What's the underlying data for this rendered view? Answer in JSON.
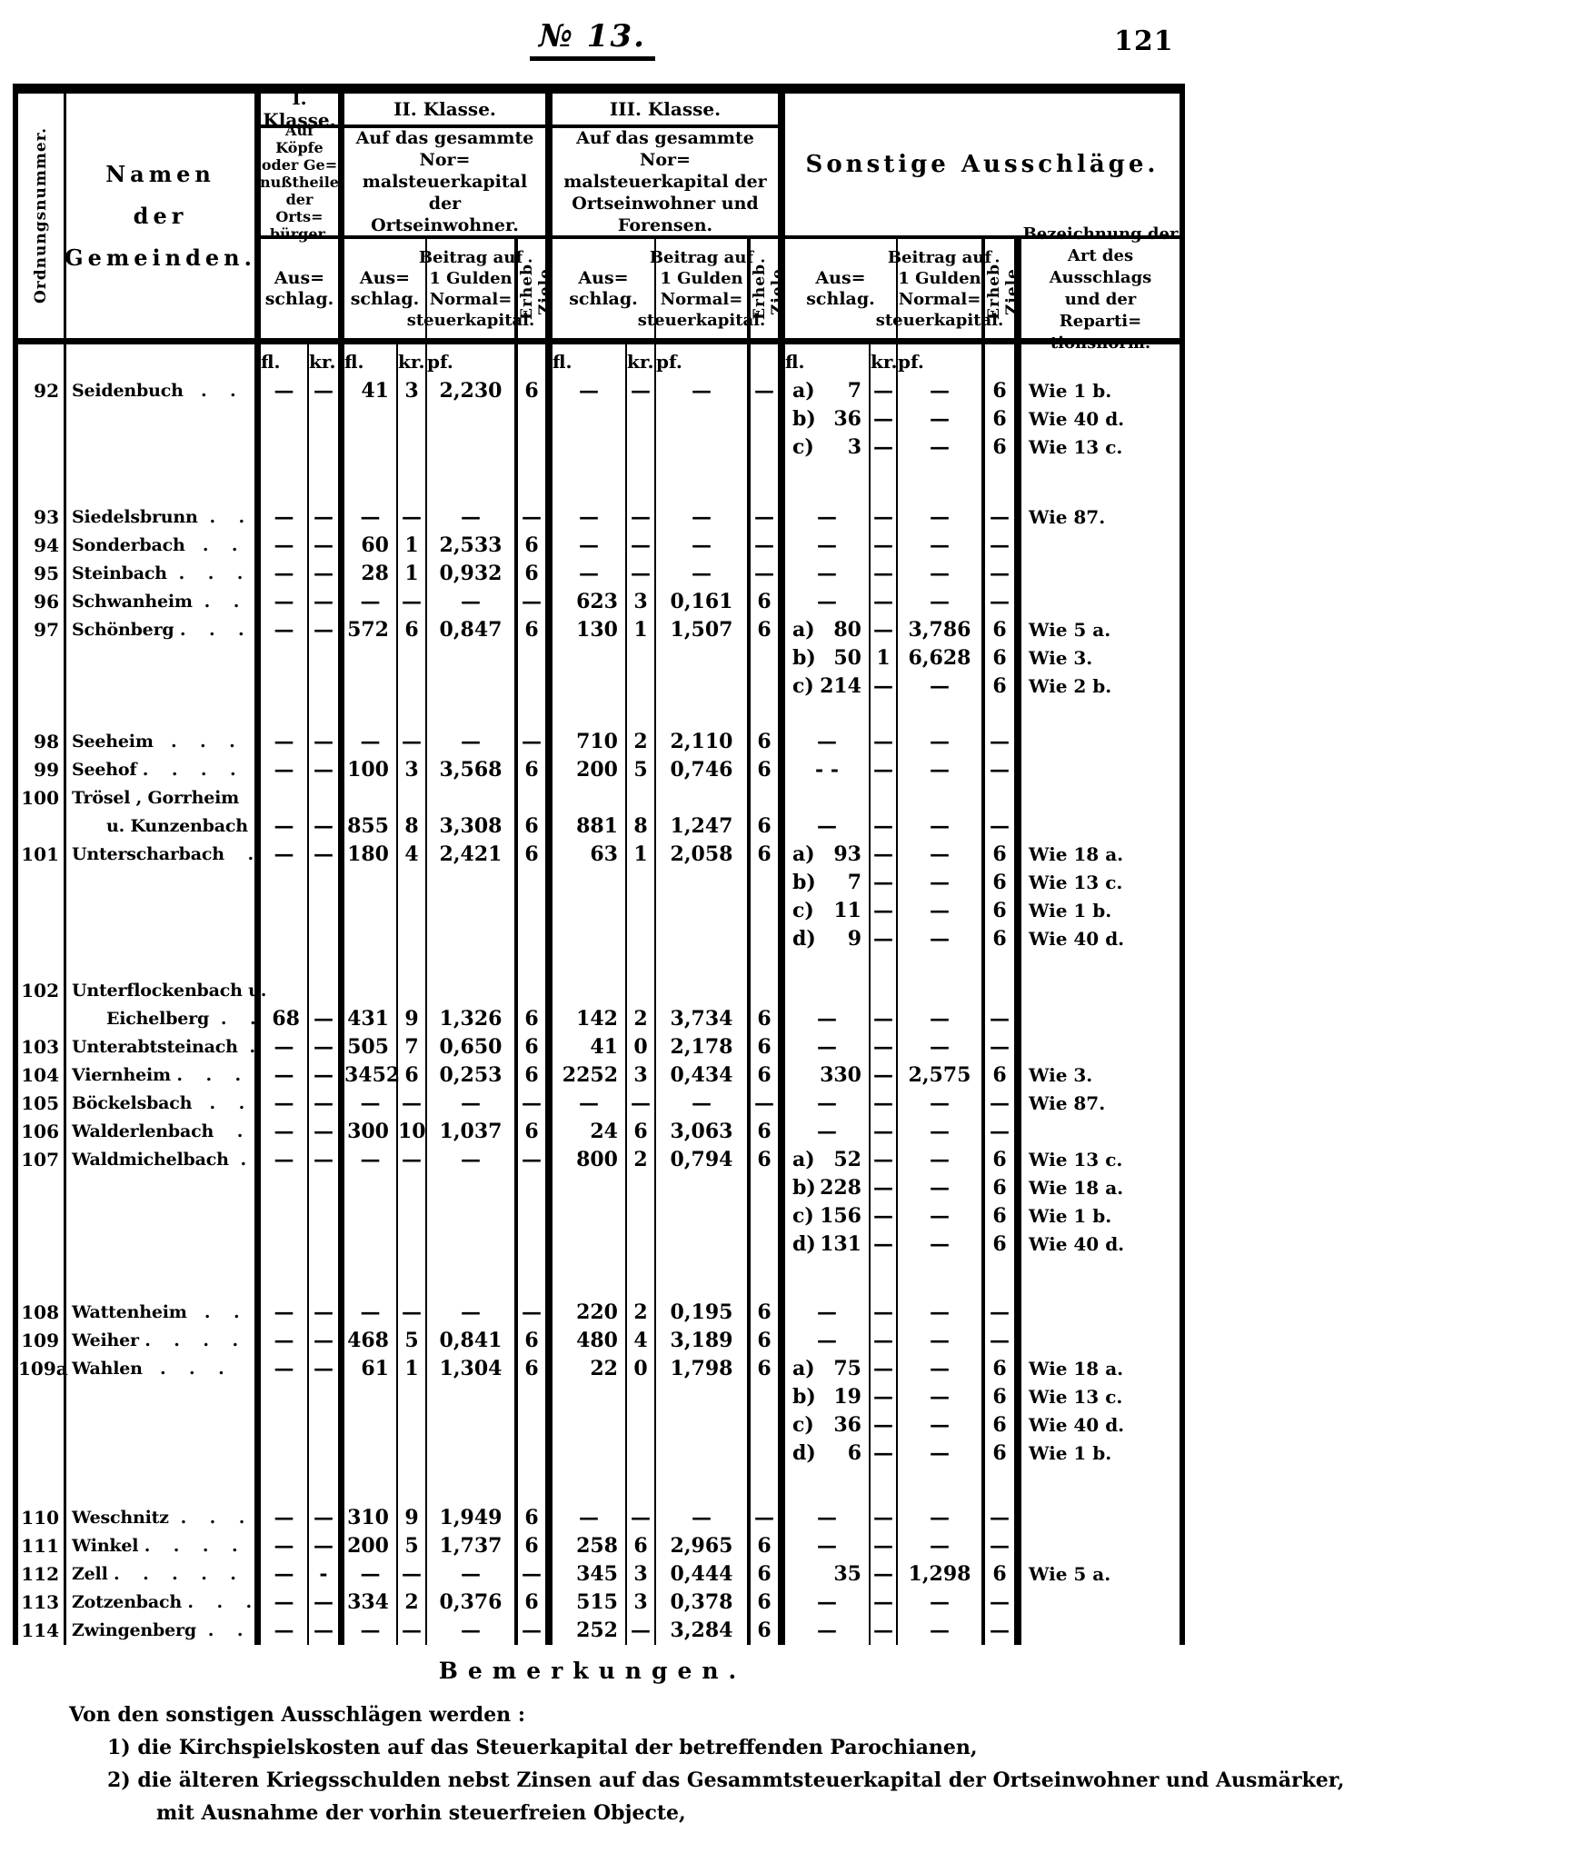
{
  "page": {
    "doc_number": "№ 13.",
    "page_number": "121",
    "bemerkungen_title": "Bemerkungen.",
    "notes_intro": "Von den sonstigen Ausschlägen werden :",
    "notes": [
      "1) die Kirchspielskosten auf das Steuerkapital der betreffenden Parochianen,",
      "2) die älteren Kriegsschulden nebst Zinsen auf das Gesammtsteuerkapital der Ortseinwohner und Ausmärker,",
      "mit Ausnahme der vorhin steuerfreien Objecte,"
    ]
  },
  "header": {
    "ordnungsnummer": "Ordnungsnummer.",
    "namen": [
      "Namen",
      "der",
      "Gemeinden."
    ],
    "klasse1": {
      "title": "I. Klasse.",
      "desc": [
        "Auf Köpfe",
        "oder Ge=",
        "nußtheile",
        "der Orts=",
        "bürger."
      ],
      "ausschlag": [
        "Aus=",
        "schlag."
      ]
    },
    "klasse2": {
      "title": "II. Klasse.",
      "desc": [
        "Auf das gesammte Nor=",
        "malsteuerkapital der",
        "Ortseinwohner."
      ],
      "ausschlag": [
        "Aus=",
        "schlag."
      ],
      "beitrag": [
        "Beitrag auf",
        "1 Gulden",
        "Normal=",
        "steuerkapital."
      ],
      "ziele": "Erheb. Ziele."
    },
    "klasse3": {
      "title": "III. Klasse.",
      "desc": [
        "Auf das gesammte Nor=",
        "malsteuerkapital der",
        "Ortseinwohner und",
        "Forensen."
      ],
      "ausschlag": [
        "Aus=",
        "schlag."
      ],
      "beitrag": [
        "Beitrag auf",
        "1 Gulden",
        "Normal=",
        "steuerkapital."
      ],
      "ziele": "Erheb. Ziele."
    },
    "sonstige": {
      "title": "Sonstige Ausschläge.",
      "ausschlag": [
        "Aus=",
        "schlag."
      ],
      "beitrag": [
        "Beitrag auf",
        "1 Gulden",
        "Normal=",
        "steuerkapital."
      ],
      "ziele": "Erheb. Ziele.",
      "bezeichnung": [
        "Bezeichnung der",
        "Art des Ausschlags",
        "und der Reparti=",
        "tionsnorm."
      ]
    },
    "units": {
      "fl": "fl.",
      "kr": "kr.",
      "pf": "pf."
    }
  },
  "table": {
    "rows": [
      {
        "num": "92",
        "name": [
          "Seidenbuch   .    ."
        ],
        "k1": [
          "—",
          "—"
        ],
        "k2": [
          "41",
          "3",
          "2,230",
          "6"
        ],
        "k3": [
          "—",
          "—",
          "—",
          "—"
        ],
        "son": [
          {
            "l": "a)",
            "fl": "7",
            "kr": "—",
            "pf": "—",
            "z": "6",
            "wie": "Wie 1 b."
          },
          {
            "l": "b)",
            "fl": "36",
            "kr": "—",
            "pf": "—",
            "z": "6",
            "wie": "Wie 40 d."
          },
          {
            "l": "c)",
            "fl": "3",
            "kr": "—",
            "pf": "—",
            "z": "6",
            "wie": "Wie 13 c."
          }
        ],
        "gap": 46
      },
      {
        "num": "93",
        "name": [
          "Siedelsbrunn  .    ."
        ],
        "k1": [
          "—",
          "—"
        ],
        "k2": [
          "—",
          "—",
          "—",
          "—"
        ],
        "k3": [
          "—",
          "—",
          "—",
          "—"
        ],
        "son": [
          {
            "l": "",
            "fl": "—",
            "kr": "—",
            "pf": "—",
            "z": "—",
            "wie": "Wie 87."
          }
        ]
      },
      {
        "num": "94",
        "name": [
          "Sonderbach   .    ."
        ],
        "k1": [
          "—",
          "—"
        ],
        "k2": [
          "60",
          "1",
          "2,533",
          "6"
        ],
        "k3": [
          "—",
          "—",
          "—",
          "—"
        ],
        "son": [
          {
            "l": "",
            "fl": "—",
            "kr": "—",
            "pf": "—",
            "z": "—",
            "wie": ""
          }
        ]
      },
      {
        "num": "95",
        "name": [
          "Steinbach  .    .    ."
        ],
        "k1": [
          "—",
          "—"
        ],
        "k2": [
          "28",
          "1",
          "0,932",
          "6"
        ],
        "k3": [
          "—",
          "—",
          "—",
          "—"
        ],
        "son": [
          {
            "l": "",
            "fl": "—",
            "kr": "—",
            "pf": "—",
            "z": "—",
            "wie": ""
          }
        ]
      },
      {
        "num": "96",
        "name": [
          "Schwanheim  .    ."
        ],
        "k1": [
          "—",
          "—"
        ],
        "k2": [
          "—",
          "—",
          "—",
          "—"
        ],
        "k3": [
          "623",
          "3",
          "0,161",
          "6"
        ],
        "son": [
          {
            "l": "",
            "fl": "—",
            "kr": "—",
            "pf": "—",
            "z": "—",
            "wie": ""
          }
        ]
      },
      {
        "num": "97",
        "name": [
          "Schönberg .    .    ."
        ],
        "k1": [
          "—",
          "—"
        ],
        "k2": [
          "572",
          "6",
          "0,847",
          "6"
        ],
        "k3": [
          "130",
          "1",
          "1,507",
          "6"
        ],
        "son": [
          {
            "l": "a)",
            "fl": "80",
            "kr": "—",
            "pf": "3,786",
            "z": "6",
            "wie": "Wie 5 a."
          },
          {
            "l": "b)",
            "fl": "50",
            "kr": "1",
            "pf": "6,628",
            "z": "6",
            "wie": "Wie 3."
          },
          {
            "l": "c)",
            "fl": "214",
            "kr": "—",
            "pf": "—",
            "z": "6",
            "wie": "Wie 2 b."
          }
        ],
        "gap": 30
      },
      {
        "num": "98",
        "name": [
          "Seeheim   .    .    ."
        ],
        "k1": [
          "—",
          "—"
        ],
        "k2": [
          "—",
          "—",
          "—",
          "—"
        ],
        "k3": [
          "710",
          "2",
          "2,110",
          "6"
        ],
        "son": [
          {
            "l": "",
            "fl": "—",
            "kr": "—",
            "pf": "—",
            "z": "—",
            "wie": ""
          }
        ]
      },
      {
        "num": "99",
        "name": [
          "Seehof .    .    .    ."
        ],
        "k1": [
          "—",
          "—"
        ],
        "k2": [
          "100",
          "3",
          "3,568",
          "6"
        ],
        "k3": [
          "200",
          "5",
          "0,746",
          "6"
        ],
        "son": [
          {
            "l": "",
            "fl": "- -",
            "kr": "—",
            "pf": "—",
            "z": "—",
            "wie": ""
          }
        ]
      },
      {
        "num": "100",
        "name": [
          "Trösel , Gorrheim",
          "u. Kunzenbach ."
        ],
        "va": "b",
        "k1": [
          "—",
          "—"
        ],
        "k2": [
          "855",
          "8",
          "3,308",
          "6"
        ],
        "k3": [
          "881",
          "8",
          "1,247",
          "6"
        ],
        "son": [
          {
            "l": "",
            "fl": "—",
            "kr": "—",
            "pf": "—",
            "z": "—",
            "wie": ""
          }
        ]
      },
      {
        "num": "101",
        "name": [
          "Unterscharbach    ."
        ],
        "k1": [
          "—",
          "—"
        ],
        "k2": [
          "180",
          "4",
          "2,421",
          "6"
        ],
        "k3": [
          "63",
          "1",
          "2,058",
          "6"
        ],
        "son": [
          {
            "l": "a)",
            "fl": "93",
            "kr": "—",
            "pf": "—",
            "z": "6",
            "wie": "Wie 18 a."
          },
          {
            "l": "b)",
            "fl": "7",
            "kr": "—",
            "pf": "—",
            "z": "6",
            "wie": "Wie 13 c."
          },
          {
            "l": "c)",
            "fl": "11",
            "kr": "—",
            "pf": "—",
            "z": "6",
            "wie": "Wie 1 b."
          },
          {
            "l": "d)",
            "fl": "9",
            "kr": "—",
            "pf": "—",
            "z": "6",
            "wie": "Wie 40 d."
          }
        ],
        "gap": 26
      },
      {
        "num": "102",
        "name": [
          "Unterflockenbach u.",
          "Eichelberg  .    ."
        ],
        "va": "b",
        "k1": [
          "68",
          "—"
        ],
        "k2": [
          "431",
          "9",
          "1,326",
          "6"
        ],
        "k3": [
          "142",
          "2",
          "3,734",
          "6"
        ],
        "son": [
          {
            "l": "",
            "fl": "—",
            "kr": "—",
            "pf": "—",
            "z": "—",
            "wie": ""
          }
        ]
      },
      {
        "num": "103",
        "name": [
          "Unterabtsteinach  ."
        ],
        "k1": [
          "—",
          "—"
        ],
        "k2": [
          "505",
          "7",
          "0,650",
          "6"
        ],
        "k3": [
          "41",
          "0",
          "2,178",
          "6"
        ],
        "son": [
          {
            "l": "",
            "fl": "—",
            "kr": "—",
            "pf": "—",
            "z": "—",
            "wie": ""
          }
        ]
      },
      {
        "num": "104",
        "name": [
          "Viernheim .    .    ."
        ],
        "k1": [
          "—",
          "—"
        ],
        "k2": [
          "3452",
          "6",
          "0,253",
          "6"
        ],
        "k3": [
          "2252",
          "3",
          "0,434",
          "6"
        ],
        "son": [
          {
            "l": "",
            "fl": "330",
            "kr": "—",
            "pf": "2,575",
            "z": "6",
            "wie": "Wie 3."
          }
        ]
      },
      {
        "num": "105",
        "name": [
          "Böckelsbach   .    ."
        ],
        "k1": [
          "—",
          "—"
        ],
        "k2": [
          "—",
          "—",
          "—",
          "—"
        ],
        "k3": [
          "—",
          "—",
          "—",
          "—"
        ],
        "son": [
          {
            "l": "",
            "fl": "—",
            "kr": "—",
            "pf": "—",
            "z": "—",
            "wie": "Wie 87."
          }
        ]
      },
      {
        "num": "106",
        "name": [
          "Walderlenbach    ."
        ],
        "k1": [
          "—",
          "—"
        ],
        "k2": [
          "300",
          "10",
          "1,037",
          "6"
        ],
        "k3": [
          "24",
          "6",
          "3,063",
          "6"
        ],
        "son": [
          {
            "l": "",
            "fl": "—",
            "kr": "—",
            "pf": "—",
            "z": "—",
            "wie": ""
          }
        ]
      },
      {
        "num": "107",
        "name": [
          "Waldmichelbach  ."
        ],
        "k1": [
          "—",
          "—"
        ],
        "k2": [
          "—",
          "—",
          "—",
          "—"
        ],
        "k3": [
          "800",
          "2",
          "0,794",
          "6"
        ],
        "son": [
          {
            "l": "a)",
            "fl": "52",
            "kr": "—",
            "pf": "—",
            "z": "6",
            "wie": "Wie 13 c."
          },
          {
            "l": "b)",
            "fl": "228",
            "kr": "—",
            "pf": "—",
            "z": "6",
            "wie": "Wie 18 a."
          },
          {
            "l": "c)",
            "fl": "156",
            "kr": "—",
            "pf": "—",
            "z": "6",
            "wie": "Wie 1 b."
          },
          {
            "l": "d)",
            "fl": "131",
            "kr": "—",
            "pf": "—",
            "z": "6",
            "wie": "Wie 40 d."
          }
        ],
        "gap": 44
      },
      {
        "num": "108",
        "name": [
          "Wattenheim   .    ."
        ],
        "k1": [
          "—",
          "—"
        ],
        "k2": [
          "—",
          "—",
          "—",
          "—"
        ],
        "k3": [
          "220",
          "2",
          "0,195",
          "6"
        ],
        "son": [
          {
            "l": "",
            "fl": "—",
            "kr": "—",
            "pf": "—",
            "z": "—",
            "wie": ""
          }
        ]
      },
      {
        "num": "109",
        "name": [
          "Weiher .    .    .    ."
        ],
        "k1": [
          "—",
          "—"
        ],
        "k2": [
          "468",
          "5",
          "0,841",
          "6"
        ],
        "k3": [
          "480",
          "4",
          "3,189",
          "6"
        ],
        "son": [
          {
            "l": "",
            "fl": "—",
            "kr": "—",
            "pf": "—",
            "z": "—",
            "wie": ""
          }
        ]
      },
      {
        "num": "109a",
        "name": [
          "Wahlen   .    .    ."
        ],
        "k1": [
          "—",
          "—"
        ],
        "k2": [
          "61",
          "1",
          "1,304",
          "6"
        ],
        "k3": [
          "22",
          "0",
          "1,798",
          "6"
        ],
        "son": [
          {
            "l": "a)",
            "fl": "75",
            "kr": "—",
            "pf": "—",
            "z": "6",
            "wie": "Wie 18 a."
          },
          {
            "l": "b)",
            "fl": "19",
            "kr": "—",
            "pf": "—",
            "z": "6",
            "wie": "Wie 13 c."
          },
          {
            "l": "c)",
            "fl": "36",
            "kr": "—",
            "pf": "—",
            "z": "6",
            "wie": "Wie 40 d."
          },
          {
            "l": "d)",
            "fl": "6",
            "kr": "—",
            "pf": "—",
            "z": "6",
            "wie": "Wie 1 b."
          }
        ],
        "gap": 40
      },
      {
        "num": "110",
        "name": [
          "Weschnitz  .    .    ."
        ],
        "k1": [
          "—",
          "—"
        ],
        "k2": [
          "310",
          "9",
          "1,949",
          "6"
        ],
        "k3": [
          "—",
          "—",
          "—",
          "—"
        ],
        "son": [
          {
            "l": "",
            "fl": "—",
            "kr": "—",
            "pf": "—",
            "z": "—",
            "wie": ""
          }
        ]
      },
      {
        "num": "111",
        "name": [
          "Winkel .    .    .    ."
        ],
        "k1": [
          "—",
          "—"
        ],
        "k2": [
          "200",
          "5",
          "1,737",
          "6"
        ],
        "k3": [
          "258",
          "6",
          "2,965",
          "6"
        ],
        "son": [
          {
            "l": "",
            "fl": "—",
            "kr": "—",
            "pf": "—",
            "z": "—",
            "wie": ""
          }
        ]
      },
      {
        "num": "112",
        "name": [
          "Zell .    .    .    .    ."
        ],
        "k1": [
          "—",
          "-"
        ],
        "k2": [
          "—",
          "—",
          "—",
          "—"
        ],
        "k3": [
          "345",
          "3",
          "0,444",
          "6"
        ],
        "son": [
          {
            "l": "",
            "fl": "35",
            "kr": "—",
            "pf": "1,298",
            "z": "6",
            "wie": "Wie 5 a."
          }
        ]
      },
      {
        "num": "113",
        "name": [
          "Zotzenbach .    .    ."
        ],
        "k1": [
          "—",
          "—"
        ],
        "k2": [
          "334",
          "2",
          "0,376",
          "6"
        ],
        "k3": [
          "515",
          "3",
          "0,378",
          "6"
        ],
        "son": [
          {
            "l": "",
            "fl": "—",
            "kr": "—",
            "pf": "—",
            "z": "—",
            "wie": ""
          }
        ]
      },
      {
        "num": "114",
        "name": [
          "Zwingenberg  .    ."
        ],
        "k1": [
          "—",
          "—"
        ],
        "k2": [
          "—",
          "—",
          "—",
          "—"
        ],
        "k3": [
          "252",
          "—",
          "3,284",
          "6"
        ],
        "son": [
          {
            "l": "",
            "fl": "—",
            "kr": "—",
            "pf": "—",
            "z": "—",
            "wie": ""
          }
        ]
      }
    ]
  }
}
